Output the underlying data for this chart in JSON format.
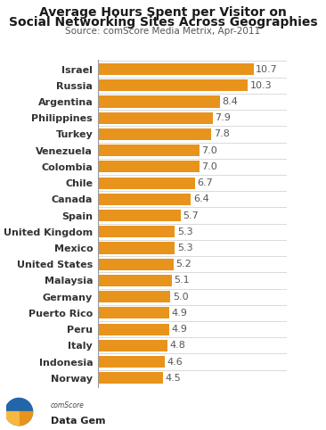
{
  "title_line1": "Average Hours Spent per Visitor on",
  "title_line2": "Social Networking Sites Across Geographies",
  "source": "Source: comScore Media Metrix, Apr-2011",
  "countries": [
    "Israel",
    "Russia",
    "Argentina",
    "Philippines",
    "Turkey",
    "Venezuela",
    "Colombia",
    "Chile",
    "Canada",
    "Spain",
    "United Kingdom",
    "Mexico",
    "United States",
    "Malaysia",
    "Germany",
    "Puerto Rico",
    "Peru",
    "Italy",
    "Indonesia",
    "Norway"
  ],
  "values": [
    10.7,
    10.3,
    8.4,
    7.9,
    7.8,
    7.0,
    7.0,
    6.7,
    6.4,
    5.7,
    5.3,
    5.3,
    5.2,
    5.1,
    5.0,
    4.9,
    4.9,
    4.8,
    4.6,
    4.5
  ],
  "bar_color": "#E8931C",
  "background_color": "#FFFFFF",
  "text_color": "#333333",
  "value_color": "#555555",
  "title_color": "#1a1a1a",
  "source_color": "#555555",
  "separator_color": "#CCCCCC",
  "spine_color": "#999999",
  "xlim": [
    0,
    13.0
  ],
  "bar_height": 0.72,
  "title_fontsize": 10,
  "label_fontsize": 8,
  "value_fontsize": 8,
  "source_fontsize": 7.5
}
